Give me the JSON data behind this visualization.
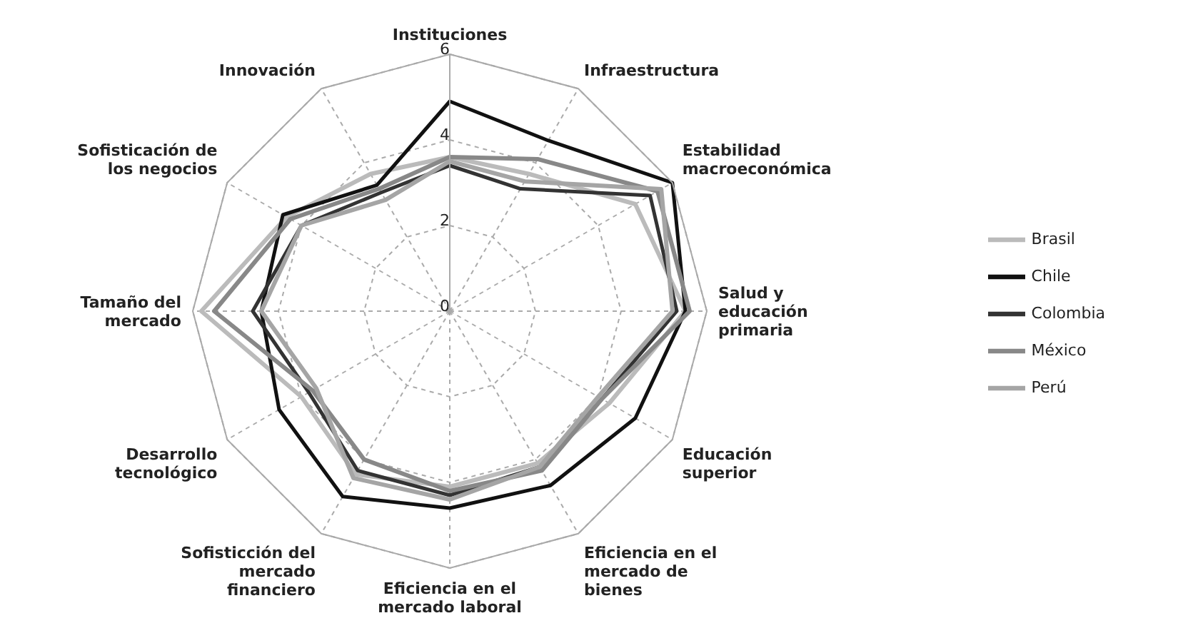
{
  "chart_data": {
    "type": "radar",
    "categories": [
      "Instituciones",
      "Infraestructura",
      "Estabilidad macroeconómica",
      "Salud y educación primaria",
      "Educación superior",
      "Eficiencia en el mercado de bienes",
      "Eficiencia en el mercado laboral",
      "Sofisticción del mercado financiero",
      "Desarrollo tecnológico",
      "Tamaño del mercado",
      "Sofisticación de los negocios",
      "Innovación"
    ],
    "series": [
      {
        "name": "Brasil",
        "color": "#bbbbbb",
        "values": [
          3.6,
          3.7,
          5.0,
          5.5,
          4.3,
          4.1,
          4.1,
          4.4,
          4.0,
          5.8,
          4.4,
          3.7
        ]
      },
      {
        "name": "Chile",
        "color": "#111111",
        "values": [
          4.9,
          4.6,
          6.0,
          5.5,
          5.0,
          4.7,
          4.6,
          5.0,
          4.6,
          4.4,
          4.5,
          3.4
        ]
      },
      {
        "name": "Colombia",
        "color": "#333333",
        "values": [
          3.4,
          3.3,
          5.4,
          5.3,
          4.1,
          4.2,
          4.3,
          4.3,
          3.8,
          4.6,
          4.0,
          3.2
        ]
      },
      {
        "name": "México",
        "color": "#888888",
        "values": [
          3.6,
          4.1,
          5.6,
          5.6,
          4.1,
          4.3,
          4.2,
          4.0,
          3.7,
          5.5,
          4.3,
          3.3
        ]
      },
      {
        "name": "Perú",
        "color": "#a5a5a5",
        "values": [
          3.5,
          3.5,
          5.7,
          5.2,
          4.0,
          4.2,
          4.4,
          4.5,
          3.6,
          4.4,
          4.0,
          3.0
        ]
      }
    ],
    "ylim": [
      0,
      6
    ],
    "yticks": [
      0,
      2,
      4,
      6
    ],
    "grid": true,
    "legend": "right",
    "marker": "none",
    "line_style": "solid"
  }
}
